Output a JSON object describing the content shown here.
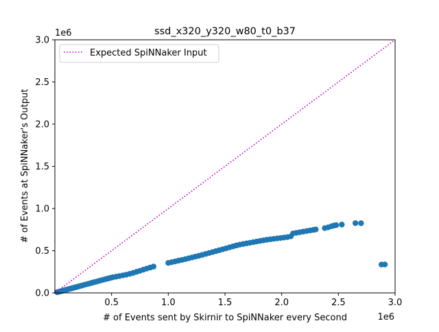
{
  "chart_data": {
    "type": "scatter",
    "title": "ssd_x320_y320_w80_t0_b37",
    "xlabel": "# of Events sent by Skirnir to SpiNNaker every Second",
    "ylabel": "# of Events at SpiNNaker's Output",
    "x_offset_label": "1e6",
    "y_offset_label": "1e6",
    "xlim": [
      0,
      3000000
    ],
    "ylim": [
      0,
      3000000
    ],
    "x_ticks": [
      {
        "value": 500000,
        "label": "0.5"
      },
      {
        "value": 1000000,
        "label": "1.0"
      },
      {
        "value": 1500000,
        "label": "1.5"
      },
      {
        "value": 2000000,
        "label": "2.0"
      },
      {
        "value": 2500000,
        "label": "2.5"
      },
      {
        "value": 3000000,
        "label": "3.0"
      }
    ],
    "y_ticks": [
      {
        "value": 0,
        "label": "0.0"
      },
      {
        "value": 500000,
        "label": "0.5"
      },
      {
        "value": 1000000,
        "label": "1.0"
      },
      {
        "value": 1500000,
        "label": "1.5"
      },
      {
        "value": 2000000,
        "label": "2.0"
      },
      {
        "value": 2500000,
        "label": "2.5"
      },
      {
        "value": 3000000,
        "label": "3.0"
      }
    ],
    "grid": false,
    "legend_position": "top-left",
    "reference_line": {
      "name": "Expected SpiNNaker Input",
      "x": [
        0,
        3000000
      ],
      "y": [
        0,
        3000000
      ],
      "color": "#bf00bf",
      "style": "dotted"
    },
    "series": [
      {
        "color": "#1f77b4",
        "points": [
          [
            20000,
            8000
          ],
          [
            30000,
            12000
          ],
          [
            40000,
            15000
          ],
          [
            50000,
            19000
          ],
          [
            60000,
            22000
          ],
          [
            70000,
            26000
          ],
          [
            80000,
            29000
          ],
          [
            90000,
            33000
          ],
          [
            100000,
            37000
          ],
          [
            110000,
            40000
          ],
          [
            120000,
            44000
          ],
          [
            130000,
            48000
          ],
          [
            140000,
            51000
          ],
          [
            150000,
            55000
          ],
          [
            160000,
            59000
          ],
          [
            175000,
            64000
          ],
          [
            190000,
            69000
          ],
          [
            205000,
            75000
          ],
          [
            220000,
            81000
          ],
          [
            235000,
            86000
          ],
          [
            250000,
            92000
          ],
          [
            270000,
            99000
          ],
          [
            290000,
            106000
          ],
          [
            310000,
            113000
          ],
          [
            330000,
            121000
          ],
          [
            350000,
            128000
          ],
          [
            370000,
            135000
          ],
          [
            390000,
            143000
          ],
          [
            410000,
            150000
          ],
          [
            430000,
            157000
          ],
          [
            450000,
            164000
          ],
          [
            470000,
            171000
          ],
          [
            490000,
            178000
          ],
          [
            510000,
            185000
          ],
          [
            540000,
            192000
          ],
          [
            570000,
            200000
          ],
          [
            600000,
            208000
          ],
          [
            630000,
            216000
          ],
          [
            660000,
            226000
          ],
          [
            690000,
            237000
          ],
          [
            720000,
            250000
          ],
          [
            750000,
            262000
          ],
          [
            780000,
            275000
          ],
          [
            810000,
            288000
          ],
          [
            840000,
            300000
          ],
          [
            870000,
            312000
          ],
          [
            1000000,
            355000
          ],
          [
            1030000,
            364000
          ],
          [
            1060000,
            373000
          ],
          [
            1090000,
            382000
          ],
          [
            1120000,
            391000
          ],
          [
            1150000,
            400000
          ],
          [
            1180000,
            410000
          ],
          [
            1210000,
            420000
          ],
          [
            1240000,
            430000
          ],
          [
            1270000,
            440000
          ],
          [
            1300000,
            451000
          ],
          [
            1330000,
            462000
          ],
          [
            1360000,
            473000
          ],
          [
            1390000,
            484000
          ],
          [
            1420000,
            495000
          ],
          [
            1450000,
            506000
          ],
          [
            1480000,
            517000
          ],
          [
            1510000,
            528000
          ],
          [
            1540000,
            540000
          ],
          [
            1570000,
            551000
          ],
          [
            1600000,
            562000
          ],
          [
            1630000,
            572000
          ],
          [
            1660000,
            580000
          ],
          [
            1690000,
            587000
          ],
          [
            1720000,
            594000
          ],
          [
            1750000,
            601000
          ],
          [
            1780000,
            609000
          ],
          [
            1810000,
            616000
          ],
          [
            1840000,
            623000
          ],
          [
            1870000,
            630000
          ],
          [
            1900000,
            636000
          ],
          [
            1930000,
            641000
          ],
          [
            1960000,
            646000
          ],
          [
            1990000,
            651000
          ],
          [
            2020000,
            656000
          ],
          [
            2050000,
            661000
          ],
          [
            2080000,
            670000
          ],
          [
            2100000,
            705000
          ],
          [
            2130000,
            712000
          ],
          [
            2160000,
            719000
          ],
          [
            2190000,
            726000
          ],
          [
            2220000,
            733000
          ],
          [
            2250000,
            740000
          ],
          [
            2280000,
            747000
          ],
          [
            2300000,
            752000
          ],
          [
            2380000,
            768000
          ],
          [
            2410000,
            777000
          ],
          [
            2440000,
            790000
          ],
          [
            2460000,
            798000
          ],
          [
            2480000,
            803000
          ],
          [
            2530000,
            810000
          ],
          [
            2650000,
            827000
          ],
          [
            2700000,
            826000
          ],
          [
            2880000,
            336000
          ],
          [
            2910000,
            337000
          ]
        ]
      }
    ]
  }
}
